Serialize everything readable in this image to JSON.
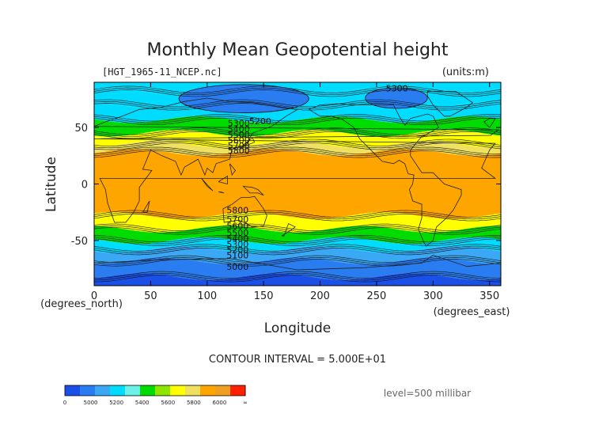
{
  "chart_data": {
    "type": "heatmap",
    "title": "Monthly Mean Geopotential height",
    "file_label": "[HGT_1965-11_NCEP.nc]",
    "units_label": "(units:m)",
    "xlabel": "Longitude",
    "ylabel": "Latitude",
    "x_unit_label": "(degrees_east)",
    "y_unit_label": "(degrees_north)",
    "xlim": [
      0,
      360
    ],
    "ylim": [
      -90,
      90
    ],
    "x_ticks": [
      0,
      50,
      100,
      150,
      200,
      250,
      300,
      350
    ],
    "y_ticks": [
      50,
      0,
      -50
    ],
    "contour_interval_text": "CONTOUR INTERVAL = 5.000E+01",
    "level_text": "level=500 millibar",
    "contour_interval": 50,
    "contour_labels": [
      {
        "text": "5300",
        "lon": 268,
        "lat": 82
      },
      {
        "text": "5200",
        "lon": 147,
        "lat": 53
      },
      {
        "text": "5300",
        "lon": 128,
        "lat": 51
      },
      {
        "text": "5400",
        "lon": 128,
        "lat": 46
      },
      {
        "text": "5500",
        "lon": 128,
        "lat": 41
      },
      {
        "text": "5600",
        "lon": 128,
        "lat": 36
      },
      {
        "text": "5700",
        "lon": 128,
        "lat": 31
      },
      {
        "text": "5800",
        "lon": 128,
        "lat": 27
      },
      {
        "text": "5800",
        "lon": 127,
        "lat": -26
      },
      {
        "text": "5700",
        "lon": 127,
        "lat": -34
      },
      {
        "text": "5600",
        "lon": 127,
        "lat": -40
      },
      {
        "text": "5500",
        "lon": 127,
        "lat": -46
      },
      {
        "text": "5400",
        "lon": 127,
        "lat": -51
      },
      {
        "text": "5300",
        "lon": 127,
        "lat": -56
      },
      {
        "text": "5200",
        "lon": 127,
        "lat": -61
      },
      {
        "text": "5100",
        "lon": 127,
        "lat": -66
      },
      {
        "text": "5000",
        "lon": 127,
        "lat": -76
      }
    ],
    "colorbar": {
      "colors": [
        "#1a50e8",
        "#2a7df0",
        "#3aa8f5",
        "#00dcff",
        "#6cf0e8",
        "#00dc00",
        "#8ce600",
        "#ffff00",
        "#f0e060",
        "#ffa500",
        "#f0a020",
        "#ff2000"
      ],
      "tick_labels": [
        "0",
        "5000",
        "5200",
        "5400",
        "5600",
        "5800",
        "6000",
        "∞"
      ]
    },
    "bands": [
      {
        "lat": [
          82,
          90
        ],
        "level": "5100-5200",
        "color": "#00dcff"
      },
      {
        "lat": [
          70,
          82
        ],
        "level": "5200-5400",
        "color": "#00dcff"
      },
      {
        "lat": [
          57,
          70
        ],
        "level": "5300-5400",
        "color": "#00dcff"
      },
      {
        "lat": [
          45,
          57
        ],
        "level": "5400-5600",
        "color": "#00dc00"
      },
      {
        "lat": [
          35,
          45
        ],
        "level": "5600-5800",
        "color": "#ffff00"
      },
      {
        "lat": [
          28,
          35
        ],
        "level": "5700-5800",
        "color": "#f0e060"
      },
      {
        "lat": [
          -28,
          28
        ],
        "level": "5800-6000",
        "color": "#ffa500"
      },
      {
        "lat": [
          -40,
          -28
        ],
        "level": "5600-5800",
        "color": "#ffff00"
      },
      {
        "lat": [
          -50,
          -40
        ],
        "level": "5400-5600",
        "color": "#00dc00"
      },
      {
        "lat": [
          -58,
          -50
        ],
        "level": "5300-5400",
        "color": "#00dcff"
      },
      {
        "lat": [
          -68,
          -58
        ],
        "level": "5200-5300",
        "color": "#3aa8f5"
      },
      {
        "lat": [
          -82,
          -68
        ],
        "level": "5000-5200",
        "color": "#2a7df0"
      },
      {
        "lat": [
          -90,
          -82
        ],
        "level": "0-5000",
        "color": "#1a50e8"
      }
    ],
    "lows": [
      {
        "lon": [
          75,
          190
        ],
        "lat": [
          63,
          88
        ],
        "level": "5000-5200",
        "color": "#2a7df0"
      },
      {
        "lon": [
          240,
          295
        ],
        "lat": [
          67,
          85
        ],
        "level": "5000-5200",
        "color": "#2a7df0"
      }
    ]
  }
}
